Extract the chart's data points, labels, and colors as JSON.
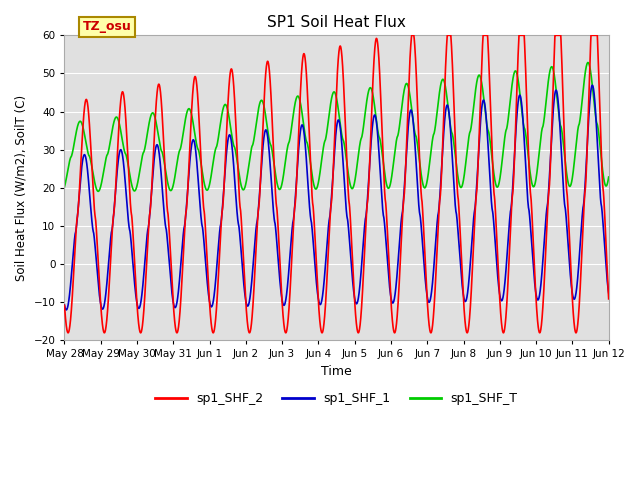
{
  "title": "SP1 Soil Heat Flux",
  "xlabel": "Time",
  "ylabel": "Soil Heat Flux (W/m2), SoilT (C)",
  "ylim": [
    -20,
    60
  ],
  "yticks": [
    -20,
    -10,
    0,
    10,
    20,
    30,
    40,
    50,
    60
  ],
  "bg_color": "#e0e0e0",
  "line_colors": {
    "sp1_SHF_2": "#ff0000",
    "sp1_SHF_1": "#0000cc",
    "sp1_SHF_T": "#00cc00"
  },
  "legend_labels": [
    "sp1_SHF_2",
    "sp1_SHF_1",
    "sp1_SHF_T"
  ],
  "tz_label": "TZ_osu",
  "tz_box_color": "#ffffaa",
  "tz_text_color": "#cc0000",
  "tz_border_color": "#aa8800",
  "x_start_day": 0,
  "x_end_day": 15.0,
  "xtick_labels": [
    "May 28",
    "May 29",
    "May 30",
    "May 31",
    "Jun 1",
    "Jun 2",
    "Jun 3",
    "Jun 4",
    "Jun 5",
    "Jun 6",
    "Jun 7",
    "Jun 8",
    "Jun 9",
    "Jun 10",
    "Jun 11",
    "Jun 12"
  ],
  "xtick_positions": [
    0,
    1,
    2,
    3,
    4,
    5,
    6,
    7,
    8,
    9,
    10,
    11,
    12,
    13,
    14,
    15
  ]
}
